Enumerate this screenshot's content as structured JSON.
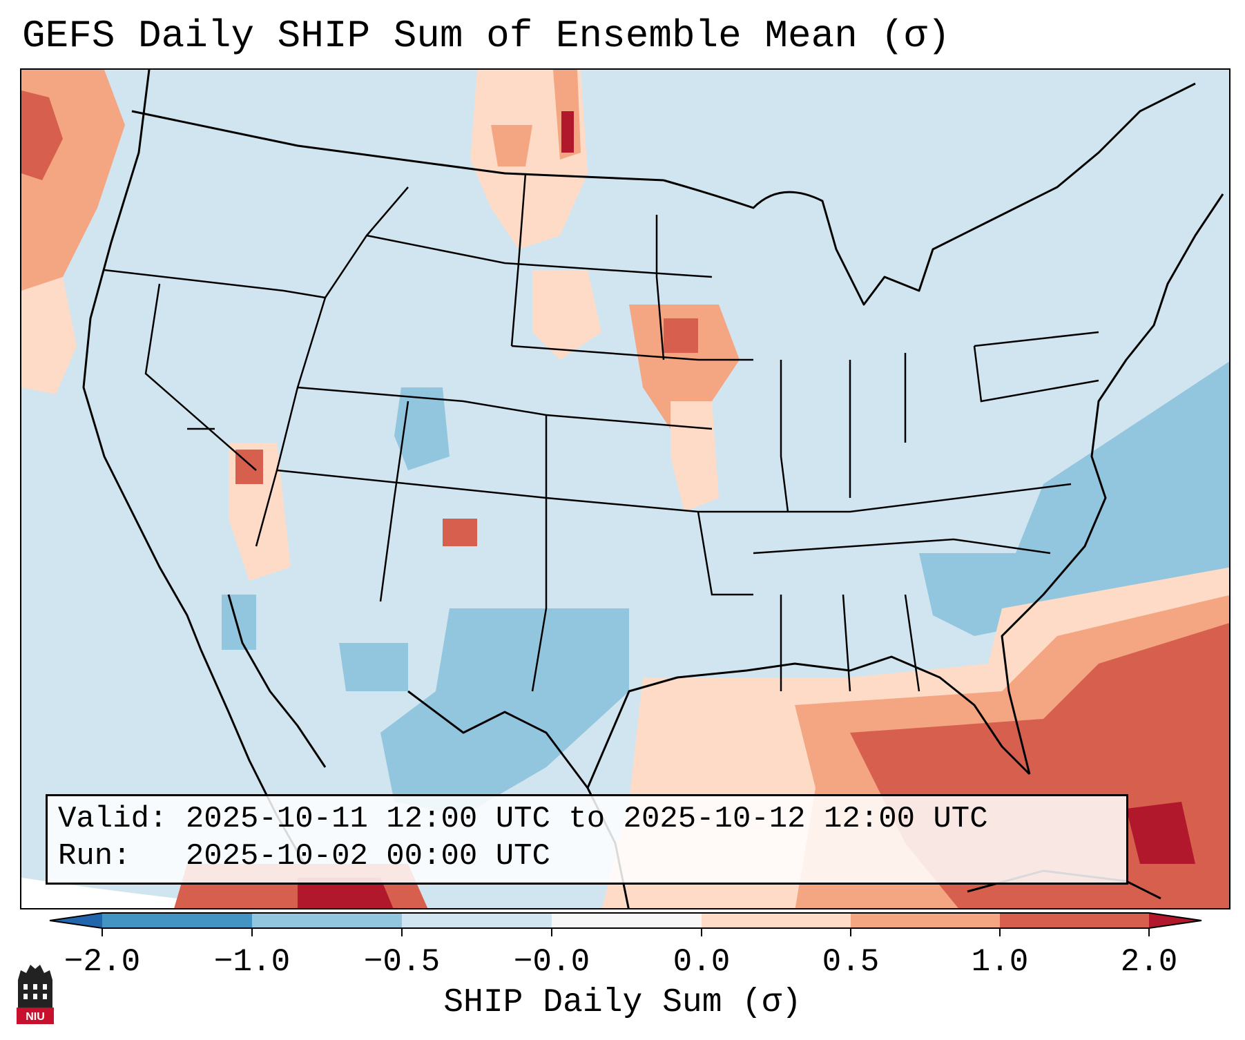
{
  "title": "GEFS Daily SHIP Sum of Ensemble Mean (σ)",
  "info": {
    "valid_line": "Valid: 2025-10-11 12:00 UTC to 2025-10-12 12:00 UTC",
    "run_line": "Run:   2025-10-02 00:00 UTC"
  },
  "colorbar": {
    "label": "SHIP Daily Sum (σ)",
    "ticks": [
      "−2.0",
      "−1.0",
      "−0.5",
      "−0.0",
      "0.0",
      "0.5",
      "1.0",
      "2.0"
    ],
    "colors": [
      "#4393c3",
      "#92c5de",
      "#d1e5f0",
      "#f7f7f7",
      "#fddbc7",
      "#f4a582",
      "#d6604d",
      "#b2182b"
    ]
  },
  "logo": {
    "text": "NIU"
  }
}
